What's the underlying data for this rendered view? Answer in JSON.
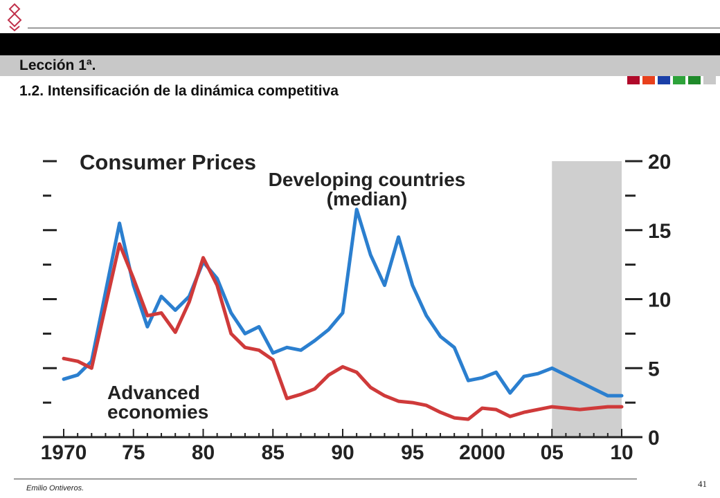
{
  "header": {
    "lesson": "Lección 1ª.",
    "subtitle": "1.2. Intensificación de la dinámica competitiva",
    "accent_squares": [
      "#b00a2a",
      "#e8401c",
      "#1a3fa8",
      "#2da33a",
      "#1f8a2a",
      "#c8c8c8"
    ]
  },
  "footer": {
    "author": "Emilio Ontiveros.",
    "page_number": "41"
  },
  "chart_data": {
    "type": "line",
    "title": "Consumer Prices",
    "x_ticks": [
      "1970",
      "75",
      "80",
      "85",
      "90",
      "95",
      "2000",
      "05",
      "10"
    ],
    "y_ticks": [
      "0",
      "5",
      "10",
      "15",
      "20"
    ],
    "ylim": [
      0,
      20
    ],
    "xlim": [
      1970,
      2010
    ],
    "projection_range": [
      2005,
      2010
    ],
    "grid": false,
    "series": [
      {
        "name": "Developing countries (median)",
        "color": "#2b7fcf",
        "label_lines": [
          "Developing countries",
          "(median)"
        ],
        "x": [
          1970,
          1971,
          1972,
          1973,
          1974,
          1975,
          1976,
          1977,
          1978,
          1979,
          1980,
          1981,
          1982,
          1983,
          1984,
          1985,
          1986,
          1987,
          1988,
          1989,
          1990,
          1991,
          1992,
          1993,
          1994,
          1995,
          1996,
          1997,
          1998,
          1999,
          2000,
          2001,
          2002,
          2003,
          2004,
          2005,
          2006,
          2007,
          2008,
          2009,
          2010
        ],
        "values": [
          4.2,
          4.5,
          5.5,
          10.5,
          15.5,
          11,
          8.0,
          10.2,
          9.2,
          10.2,
          12.7,
          11.5,
          9.0,
          7.5,
          8.0,
          6.1,
          6.5,
          6.3,
          7.0,
          7.8,
          9.0,
          16.5,
          13.2,
          11.0,
          14.5,
          11.0,
          8.8,
          7.3,
          6.5,
          4.1,
          4.3,
          4.7,
          3.2,
          4.4,
          4.6,
          5.0,
          4.5,
          4.0,
          3.5,
          3.0,
          3.0
        ]
      },
      {
        "name": "Advanced economies",
        "color": "#cf3a3a",
        "label_lines": [
          "Advanced",
          "economies"
        ],
        "x": [
          1970,
          1971,
          1972,
          1973,
          1974,
          1975,
          1976,
          1977,
          1978,
          1979,
          1980,
          1981,
          1982,
          1983,
          1984,
          1985,
          1986,
          1987,
          1988,
          1989,
          1990,
          1991,
          1992,
          1993,
          1994,
          1995,
          1996,
          1997,
          1998,
          1999,
          2000,
          2001,
          2002,
          2003,
          2004,
          2005,
          2006,
          2007,
          2008,
          2009,
          2010
        ],
        "values": [
          5.7,
          5.5,
          5.0,
          9.5,
          14.0,
          11.5,
          8.8,
          9.0,
          7.6,
          9.8,
          13.0,
          11.0,
          7.5,
          6.5,
          6.3,
          5.6,
          2.8,
          3.1,
          3.5,
          4.5,
          5.1,
          4.7,
          3.6,
          3.0,
          2.6,
          2.5,
          2.3,
          1.8,
          1.4,
          1.3,
          2.1,
          2.0,
          1.5,
          1.8,
          2.0,
          2.2,
          2.1,
          2.0,
          2.1,
          2.2,
          2.2
        ]
      }
    ]
  }
}
